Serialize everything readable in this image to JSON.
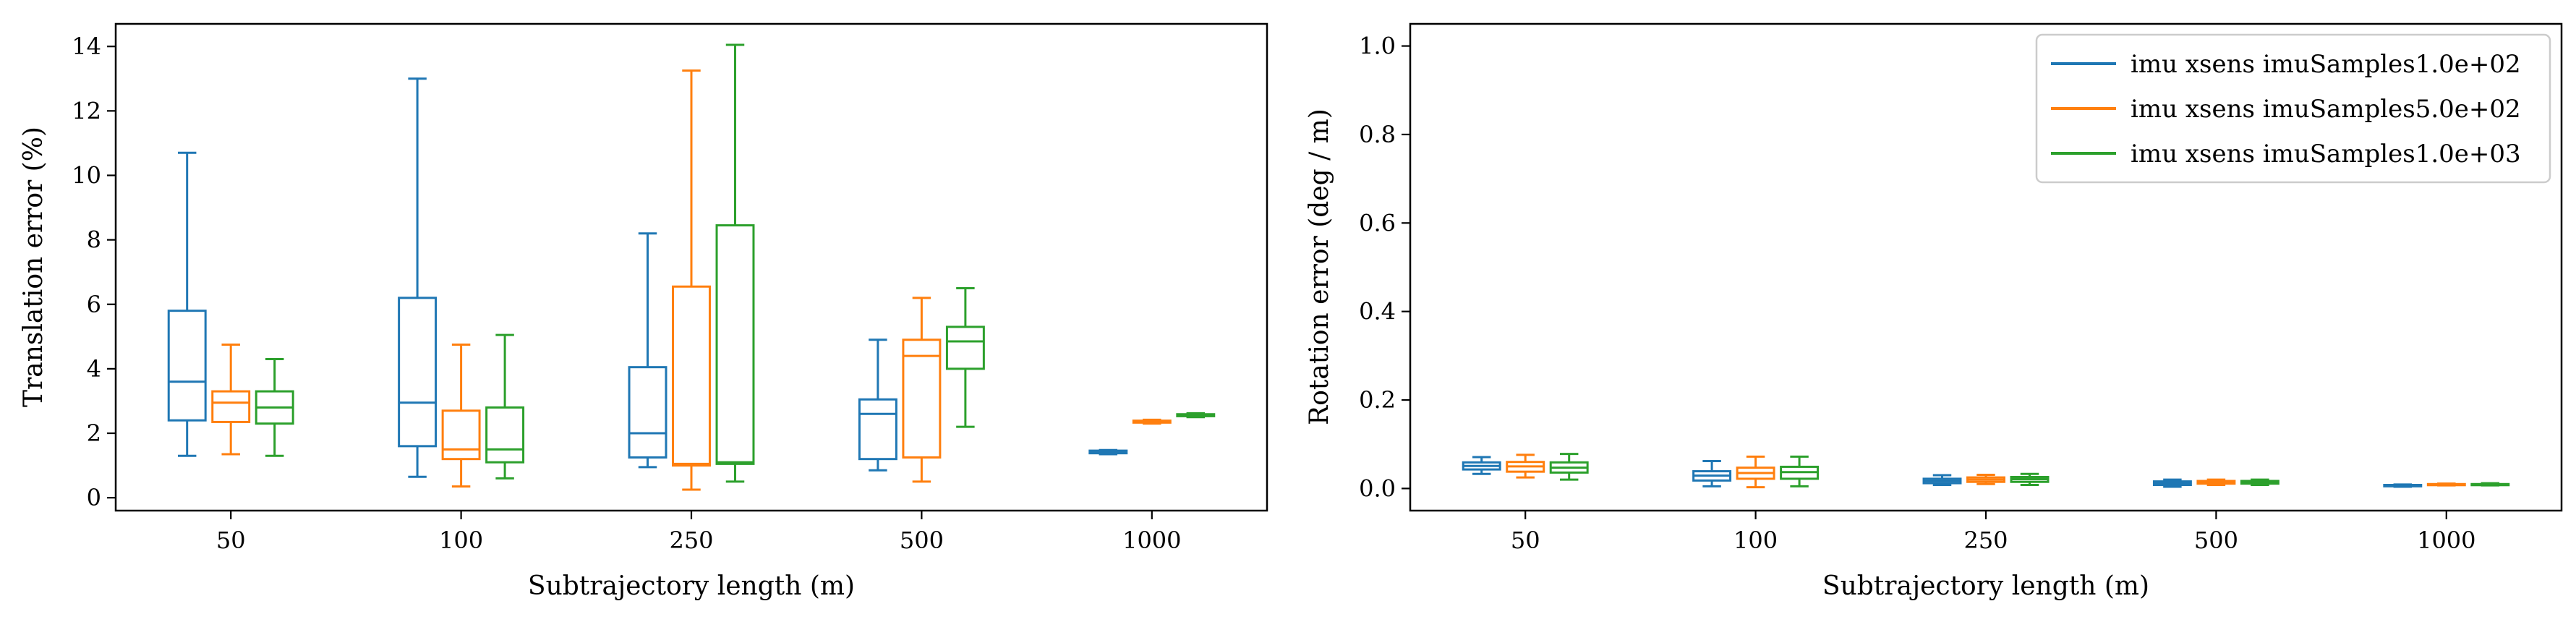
{
  "colors": {
    "series": [
      "#1f77b4",
      "#ff7f0e",
      "#2ca02c"
    ]
  },
  "chart_data": [
    {
      "type": "box",
      "title": "",
      "xlabel": "Subtrajectory length (m)",
      "ylabel": "Translation error (%)",
      "categories": [
        "50",
        "100",
        "250",
        "500",
        "1000"
      ],
      "ylim": [
        -0.4,
        14.7
      ],
      "yticks": [
        "0",
        "2",
        "4",
        "6",
        "8",
        "10",
        "12",
        "14"
      ],
      "ytick_values": [
        0,
        2,
        4,
        6,
        8,
        10,
        12,
        14
      ],
      "legend": "none",
      "grid": false,
      "series": [
        {
          "name": "imu xsens imuSamples1.0e+02",
          "boxes": [
            {
              "min": 1.3,
              "q1": 2.4,
              "median": 3.6,
              "q3": 5.8,
              "max": 10.7
            },
            {
              "min": 0.65,
              "q1": 1.6,
              "median": 2.95,
              "q3": 6.2,
              "max": 13.0
            },
            {
              "min": 0.95,
              "q1": 1.25,
              "median": 2.0,
              "q3": 4.05,
              "max": 8.2
            },
            {
              "min": 0.85,
              "q1": 1.2,
              "median": 2.6,
              "q3": 3.05,
              "max": 4.9
            },
            {
              "min": 1.35,
              "q1": 1.38,
              "median": 1.42,
              "q3": 1.46,
              "max": 1.48
            }
          ]
        },
        {
          "name": "imu xsens imuSamples5.0e+02",
          "boxes": [
            {
              "min": 1.35,
              "q1": 2.35,
              "median": 2.95,
              "q3": 3.3,
              "max": 4.75
            },
            {
              "min": 0.35,
              "q1": 1.2,
              "median": 1.5,
              "q3": 2.7,
              "max": 4.75
            },
            {
              "min": 0.25,
              "q1": 1.0,
              "median": 1.05,
              "q3": 6.55,
              "max": 13.25
            },
            {
              "min": 0.5,
              "q1": 1.25,
              "median": 4.4,
              "q3": 4.9,
              "max": 6.2
            },
            {
              "min": 2.3,
              "q1": 2.33,
              "median": 2.36,
              "q3": 2.39,
              "max": 2.42
            }
          ]
        },
        {
          "name": "imu xsens imuSamples1.0e+03",
          "boxes": [
            {
              "min": 1.3,
              "q1": 2.3,
              "median": 2.8,
              "q3": 3.3,
              "max": 4.3
            },
            {
              "min": 0.6,
              "q1": 1.1,
              "median": 1.5,
              "q3": 2.8,
              "max": 5.05
            },
            {
              "min": 0.5,
              "q1": 1.05,
              "median": 1.1,
              "q3": 8.45,
              "max": 14.05
            },
            {
              "min": 2.2,
              "q1": 4.0,
              "median": 4.85,
              "q3": 5.3,
              "max": 6.5
            },
            {
              "min": 2.5,
              "q1": 2.53,
              "median": 2.56,
              "q3": 2.59,
              "max": 2.62
            }
          ]
        }
      ]
    },
    {
      "type": "box",
      "title": "",
      "xlabel": "Subtrajectory length (m)",
      "ylabel": "Rotation error (deg / m)",
      "categories": [
        "50",
        "100",
        "250",
        "500",
        "1000"
      ],
      "ylim": [
        -0.05,
        1.05
      ],
      "yticks": [
        "0.0",
        "0.2",
        "0.4",
        "0.6",
        "0.8",
        "1.0"
      ],
      "ytick_values": [
        0.0,
        0.2,
        0.4,
        0.6,
        0.8,
        1.0
      ],
      "legend": "top-right",
      "grid": false,
      "series": [
        {
          "name": "imu xsens imuSamples1.0e+02",
          "boxes": [
            {
              "min": 0.033,
              "q1": 0.043,
              "median": 0.051,
              "q3": 0.059,
              "max": 0.071
            },
            {
              "min": 0.005,
              "q1": 0.018,
              "median": 0.029,
              "q3": 0.039,
              "max": 0.062
            },
            {
              "min": 0.008,
              "q1": 0.012,
              "median": 0.017,
              "q3": 0.022,
              "max": 0.03
            },
            {
              "min": 0.004,
              "q1": 0.008,
              "median": 0.012,
              "q3": 0.016,
              "max": 0.02
            },
            {
              "min": 0.004,
              "q1": 0.005,
              "median": 0.007,
              "q3": 0.008,
              "max": 0.009
            }
          ]
        },
        {
          "name": "imu xsens imuSamples5.0e+02",
          "boxes": [
            {
              "min": 0.025,
              "q1": 0.038,
              "median": 0.05,
              "q3": 0.06,
              "max": 0.076
            },
            {
              "min": 0.003,
              "q1": 0.022,
              "median": 0.035,
              "q3": 0.047,
              "max": 0.072
            },
            {
              "min": 0.01,
              "q1": 0.015,
              "median": 0.02,
              "q3": 0.025,
              "max": 0.031
            },
            {
              "min": 0.008,
              "q1": 0.011,
              "median": 0.014,
              "q3": 0.017,
              "max": 0.02
            },
            {
              "min": 0.007,
              "q1": 0.008,
              "median": 0.009,
              "q3": 0.01,
              "max": 0.011
            }
          ]
        },
        {
          "name": "imu xsens imuSamples1.0e+03",
          "boxes": [
            {
              "min": 0.02,
              "q1": 0.036,
              "median": 0.047,
              "q3": 0.059,
              "max": 0.078
            },
            {
              "min": 0.005,
              "q1": 0.022,
              "median": 0.037,
              "q3": 0.049,
              "max": 0.072
            },
            {
              "min": 0.008,
              "q1": 0.015,
              "median": 0.021,
              "q3": 0.026,
              "max": 0.033
            },
            {
              "min": 0.008,
              "q1": 0.011,
              "median": 0.014,
              "q3": 0.017,
              "max": 0.02
            },
            {
              "min": 0.007,
              "q1": 0.008,
              "median": 0.009,
              "q3": 0.01,
              "max": 0.012
            }
          ]
        }
      ]
    }
  ]
}
